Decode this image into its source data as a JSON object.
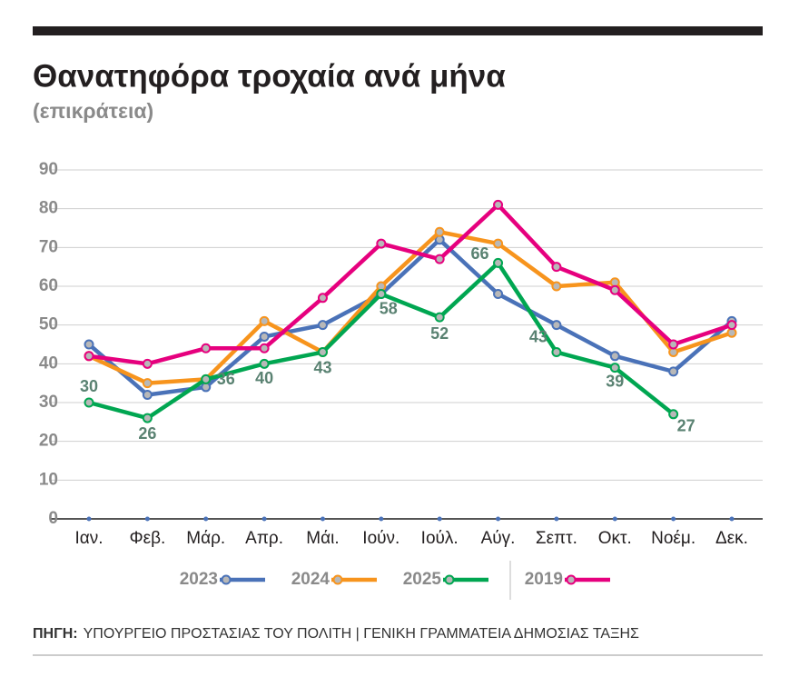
{
  "chart_data": {
    "type": "line",
    "title": "Θανατηφόρα τροχαία ανά μήνα",
    "subtitle": "(επικράτεια)",
    "categories": [
      "Ιαν.",
      "Φεβ.",
      "Μάρ.",
      "Απρ.",
      "Μάι.",
      "Ιούν.",
      "Ιούλ.",
      "Αύγ.",
      "Σεπτ.",
      "Οκτ.",
      "Νοέμ.",
      "Δεκ."
    ],
    "series": [
      {
        "name": "2023",
        "color": "#4a72b8",
        "values": [
          45,
          32,
          34,
          47,
          50,
          58,
          72,
          58,
          50,
          42,
          38,
          51
        ]
      },
      {
        "name": "2024",
        "color": "#f7941d",
        "values": [
          42,
          35,
          36,
          51,
          43,
          60,
          74,
          71,
          60,
          61,
          43,
          48
        ]
      },
      {
        "name": "2025",
        "color": "#00a651",
        "values": [
          30,
          26,
          36,
          40,
          43,
          58,
          52,
          66,
          43,
          39,
          27,
          null
        ],
        "data_labels": true
      },
      {
        "name": "2019",
        "color": "#e6007e",
        "values": [
          42,
          40,
          44,
          44,
          57,
          71,
          67,
          81,
          65,
          59,
          45,
          50
        ]
      }
    ],
    "ylim": [
      0,
      90
    ],
    "yticks": [
      0,
      10,
      20,
      30,
      40,
      50,
      60,
      70,
      80,
      90
    ],
    "grid": true,
    "source_label": "ΠΗΓΗ:",
    "source": "ΥΠΟΥΡΓΕΙΟ ΠΡΟΣΤΑΣΙΑΣ ΤΟΥ ΠΟΛΙΤΗ | ΓΕΝΙΚΗ ΓΡΑΜΜΑΤΕΙΑ ΔΗΜΟΣΙΑΣ ΤΑΞΗΣ"
  }
}
